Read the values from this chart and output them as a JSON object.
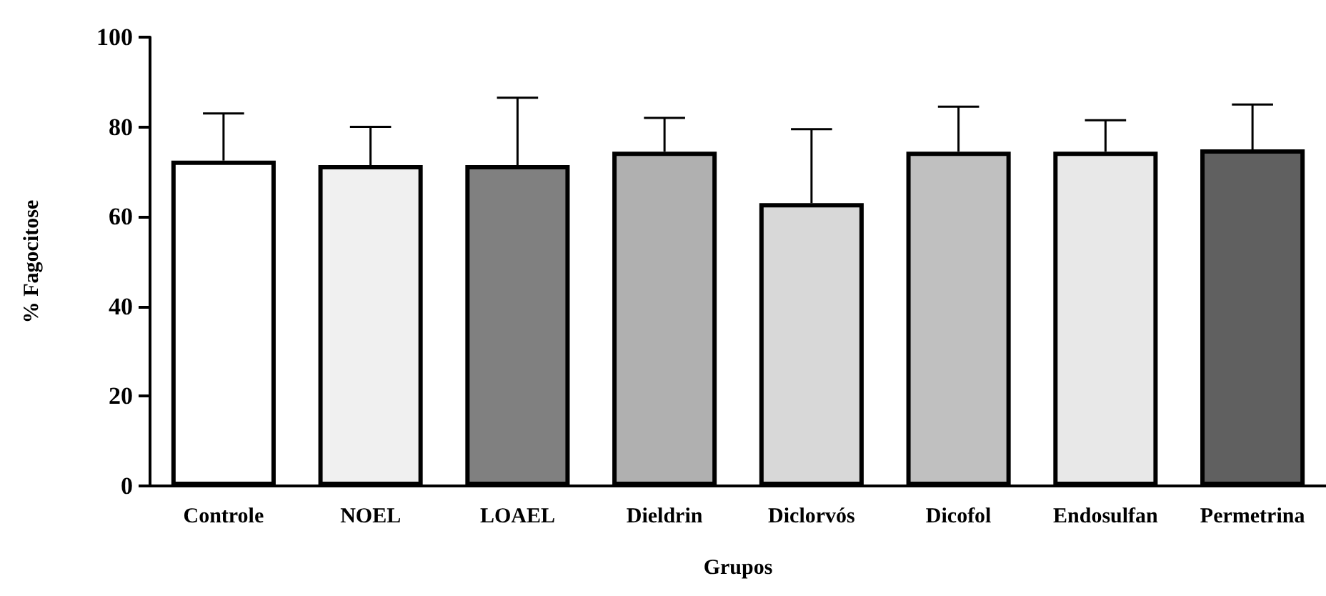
{
  "chart_data": {
    "type": "bar",
    "xlabel": "Grupos",
    "ylabel": "% Fagocitose",
    "categories": [
      "Controle",
      "NOEL",
      "LOAEL",
      "Dieldrin",
      "Diclorvós",
      "Dicofol",
      "Endosulfan",
      "Permetrina"
    ],
    "values": [
      72.5,
      71.5,
      71.5,
      74.5,
      63,
      74.5,
      74.5,
      75
    ],
    "errors": [
      [
        72.5,
        83
      ],
      [
        71.5,
        80
      ],
      [
        71.5,
        86.5
      ],
      [
        74.5,
        82
      ],
      [
        63,
        79.5
      ],
      [
        74.5,
        84.5
      ],
      [
        74.5,
        81.5
      ],
      [
        75,
        85
      ]
    ],
    "colors": [
      "#ffffff",
      "#f0f0f0",
      "#808080",
      "#b0b0b0",
      "#d8d8d8",
      "#c0c0c0",
      "#e8e8e8",
      "#606060"
    ],
    "ylim": [
      0,
      100
    ],
    "yticks": [
      0,
      20,
      40,
      60,
      80,
      100
    ],
    "grid": false
  }
}
